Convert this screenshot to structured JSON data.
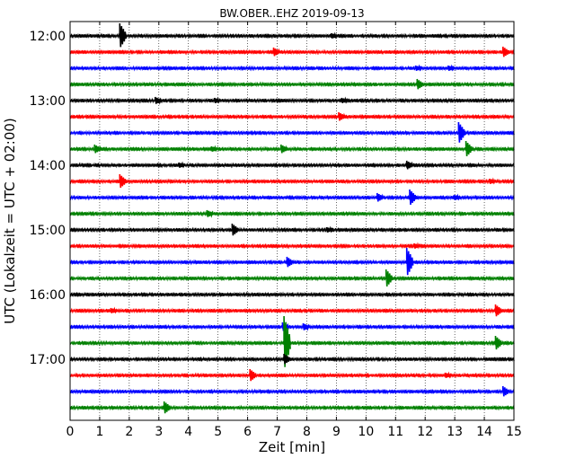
{
  "chart_data": {
    "type": "line",
    "title": "BW.OBER..EHZ 2019-09-13",
    "xlabel": "Zeit  [min]",
    "ylabel": "UTC (Lokalzeit = UTC + 02:00)",
    "xlim": [
      0,
      15
    ],
    "x_ticks": [
      "0",
      "1",
      "2",
      "3",
      "4",
      "5",
      "6",
      "7",
      "8",
      "9",
      "10",
      "11",
      "12",
      "13",
      "14",
      "15"
    ],
    "y_ticks": [
      {
        "row": 0,
        "label": "12:00"
      },
      {
        "row": 4,
        "label": "13:00"
      },
      {
        "row": 8,
        "label": "14:00"
      },
      {
        "row": 12,
        "label": "15:00"
      },
      {
        "row": 16,
        "label": "16:00"
      },
      {
        "row": 20,
        "label": "17:00"
      }
    ],
    "vertical_grid": "dotted",
    "row_minutes": 15,
    "color_cycle": [
      "#000000",
      "#ff0000",
      "#0000ff",
      "#008000"
    ],
    "series": [
      {
        "start": "12:00",
        "color": "#000000",
        "spikes": [
          [
            1.8,
            14
          ],
          [
            8.95,
            3
          ]
        ]
      },
      {
        "start": "12:15",
        "color": "#ff0000",
        "spikes": [
          [
            7.0,
            5
          ],
          [
            14.75,
            6
          ]
        ]
      },
      {
        "start": "12:30",
        "color": "#0000ff",
        "spikes": [
          [
            11.8,
            3
          ],
          [
            12.9,
            3
          ]
        ]
      },
      {
        "start": "12:45",
        "color": "#008000",
        "spikes": [
          [
            11.85,
            6
          ]
        ]
      },
      {
        "start": "13:00",
        "color": "#000000",
        "spikes": [
          [
            3.0,
            4
          ],
          [
            5.0,
            3
          ],
          [
            9.3,
            3
          ]
        ]
      },
      {
        "start": "13:15",
        "color": "#ff0000",
        "spikes": [
          [
            9.2,
            5
          ]
        ]
      },
      {
        "start": "13:30",
        "color": "#0000ff",
        "spikes": [
          [
            13.25,
            12
          ]
        ]
      },
      {
        "start": "13:45",
        "color": "#008000",
        "spikes": [
          [
            0.95,
            5
          ],
          [
            4.9,
            3
          ],
          [
            7.25,
            5
          ],
          [
            13.5,
            9
          ]
        ]
      },
      {
        "start": "14:00",
        "color": "#000000",
        "spikes": [
          [
            3.8,
            3
          ],
          [
            11.5,
            5
          ]
        ]
      },
      {
        "start": "14:15",
        "color": "#ff0000",
        "spikes": [
          [
            1.8,
            8
          ],
          [
            14.3,
            3
          ]
        ]
      },
      {
        "start": "14:30",
        "color": "#0000ff",
        "spikes": [
          [
            10.5,
            5
          ],
          [
            11.6,
            9
          ],
          [
            13.1,
            3
          ]
        ]
      },
      {
        "start": "14:45",
        "color": "#008000",
        "spikes": [
          [
            4.75,
            4
          ]
        ]
      },
      {
        "start": "15:00",
        "color": "#000000",
        "spikes": [
          [
            5.6,
            7
          ],
          [
            8.8,
            3
          ]
        ]
      },
      {
        "start": "15:15",
        "color": "#ff0000",
        "spikes": [
          [
            11.75,
            3
          ]
        ]
      },
      {
        "start": "15:30",
        "color": "#0000ff",
        "spikes": [
          [
            7.45,
            6
          ],
          [
            11.5,
            16
          ]
        ]
      },
      {
        "start": "15:45",
        "color": "#008000",
        "spikes": [
          [
            10.8,
            10
          ]
        ]
      },
      {
        "start": "16:00",
        "color": "#000000",
        "spikes": []
      },
      {
        "start": "16:15",
        "color": "#ff0000",
        "spikes": [
          [
            1.5,
            3
          ],
          [
            14.5,
            7
          ]
        ]
      },
      {
        "start": "16:30",
        "color": "#0000ff",
        "spikes": [
          [
            7.3,
            5
          ],
          [
            8.0,
            4
          ]
        ]
      },
      {
        "start": "16:45",
        "color": "#008000",
        "spikes": [
          [
            7.35,
            30
          ],
          [
            14.5,
            8
          ]
        ]
      },
      {
        "start": "17:00",
        "color": "#000000",
        "spikes": [
          [
            7.35,
            6
          ]
        ]
      },
      {
        "start": "17:15",
        "color": "#ff0000",
        "spikes": [
          [
            6.2,
            7
          ],
          [
            12.8,
            3
          ]
        ]
      },
      {
        "start": "17:30",
        "color": "#0000ff",
        "spikes": [
          [
            14.75,
            6
          ]
        ]
      },
      {
        "start": "17:45",
        "color": "#008000",
        "spikes": [
          [
            3.3,
            7
          ]
        ]
      }
    ]
  }
}
